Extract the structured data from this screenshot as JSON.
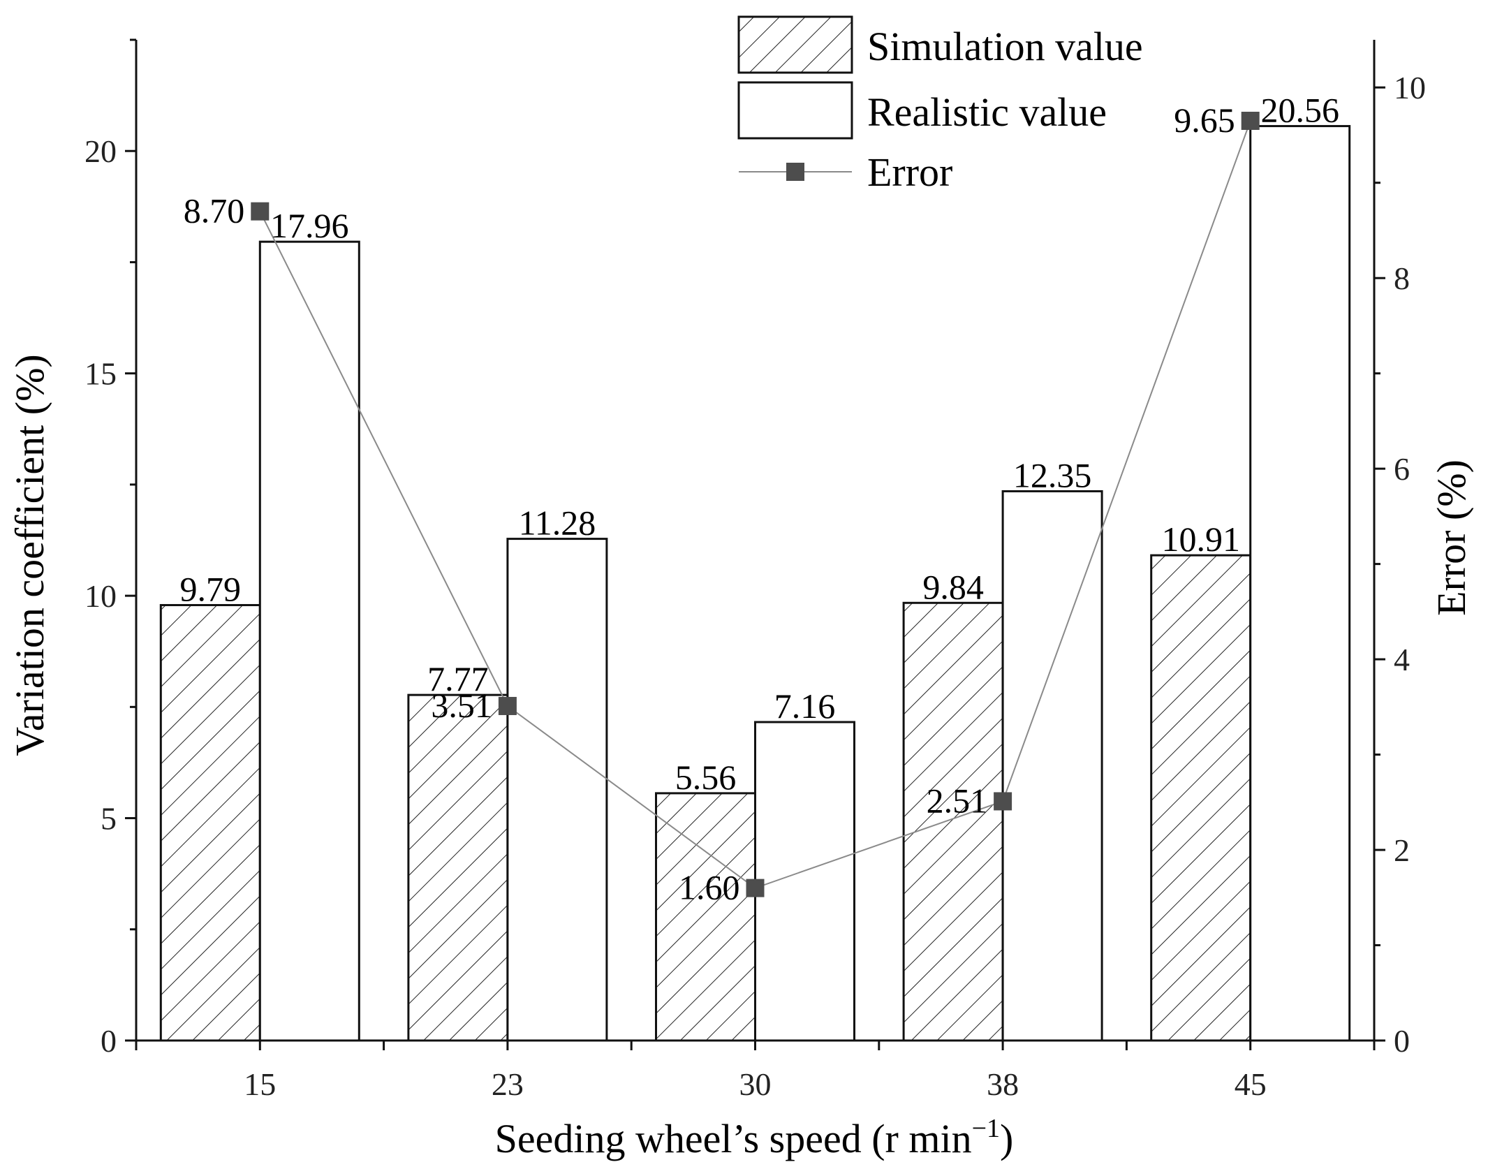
{
  "chart_data": {
    "type": "bar",
    "categories": [
      "15",
      "23",
      "30",
      "38",
      "45"
    ],
    "series": [
      {
        "name": "Simulation value",
        "kind": "bar",
        "pattern": "hatched",
        "values": [
          9.79,
          7.77,
          5.56,
          9.84,
          10.91
        ],
        "labels": [
          "9.79",
          "7.77",
          "5.56",
          "9.84",
          "10.91"
        ]
      },
      {
        "name": "Realistic value",
        "kind": "bar",
        "pattern": "open",
        "values": [
          17.96,
          11.28,
          7.16,
          12.35,
          20.56
        ],
        "labels": [
          "17.96",
          "11.28",
          "7.16",
          "12.35",
          "20.56"
        ]
      },
      {
        "name": "Error",
        "kind": "line",
        "axis": "right",
        "values": [
          8.7,
          3.51,
          1.6,
          2.51,
          9.65
        ],
        "labels": [
          "8.70",
          "3.51",
          "1.60",
          "2.51",
          "9.65"
        ]
      }
    ],
    "xlabel": "Seeding wheel’s speed (r min",
    "xlabel_sup": "−1",
    "xlabel_end": ")",
    "ylabel": "Variation coefficient (%)",
    "ylabel_right": "Error (%)",
    "ylim": [
      0,
      22.5
    ],
    "ylim_right": [
      0,
      10.5
    ],
    "yticks": [
      "0",
      "5",
      "10",
      "15",
      "20"
    ],
    "yticks_right": [
      "0",
      "2",
      "4",
      "6",
      "8",
      "10"
    ],
    "legend_position": "top-right",
    "colors": {
      "bar_stroke": "#111111",
      "hatch": "#222222",
      "line": "#8a8a8a",
      "marker": "#4d4d4d",
      "axis": "#111111"
    }
  }
}
